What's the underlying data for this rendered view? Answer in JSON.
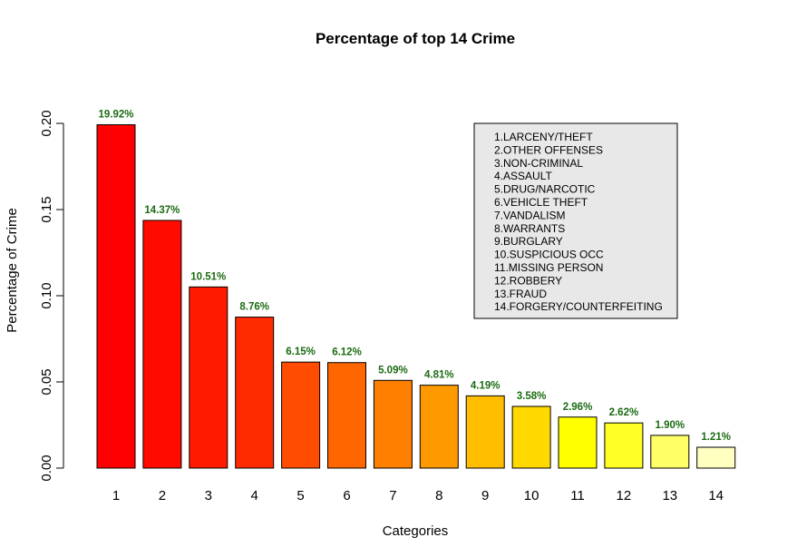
{
  "chart_data": {
    "type": "bar",
    "title": "Percentage of top 14 Crime",
    "xlabel": "Categories",
    "ylabel": "Percentage of Crime",
    "categories": [
      "1",
      "2",
      "3",
      "4",
      "5",
      "6",
      "7",
      "8",
      "9",
      "10",
      "11",
      "12",
      "13",
      "14"
    ],
    "values": [
      0.1992,
      0.1437,
      0.1051,
      0.0876,
      0.0615,
      0.0612,
      0.0509,
      0.0481,
      0.0419,
      0.0358,
      0.0296,
      0.0262,
      0.019,
      0.0121
    ],
    "data_labels": [
      "19.92%",
      "14.37%",
      "10.51%",
      "8.76%",
      "6.15%",
      "6.12%",
      "5.09%",
      "4.81%",
      "4.19%",
      "3.58%",
      "2.96%",
      "2.62%",
      "1.90%",
      "1.21%"
    ],
    "bar_colors": [
      "#ff0000",
      "#ff0b00",
      "#ff1a00",
      "#ff2b00",
      "#ff4c00",
      "#ff6600",
      "#ff8000",
      "#ff9900",
      "#ffbf00",
      "#ffd900",
      "#ffff00",
      "#ffff26",
      "#ffff66",
      "#ffffbf"
    ],
    "label_color": "#1b6b12",
    "ylim": [
      0,
      0.2
    ],
    "yticks": [
      "0.00",
      "0.05",
      "0.10",
      "0.15",
      "0.20"
    ],
    "ytick_values": [
      0,
      0.05,
      0.1,
      0.15,
      0.2
    ],
    "grid": false,
    "legend": {
      "placement": "top-right",
      "background": "#e8e8e8",
      "entries": [
        "1.LARCENY/THEFT",
        "2.OTHER OFFENSES",
        "3.NON-CRIMINAL",
        "4.ASSAULT",
        "5.DRUG/NARCOTIC",
        "6.VEHICLE THEFT",
        "7.VANDALISM",
        "8.WARRANTS",
        "9.BURGLARY",
        "10.SUSPICIOUS OCC",
        "11.MISSING PERSON",
        "12.ROBBERY",
        "13.FRAUD",
        "14.FORGERY/COUNTERFEITING"
      ]
    }
  }
}
